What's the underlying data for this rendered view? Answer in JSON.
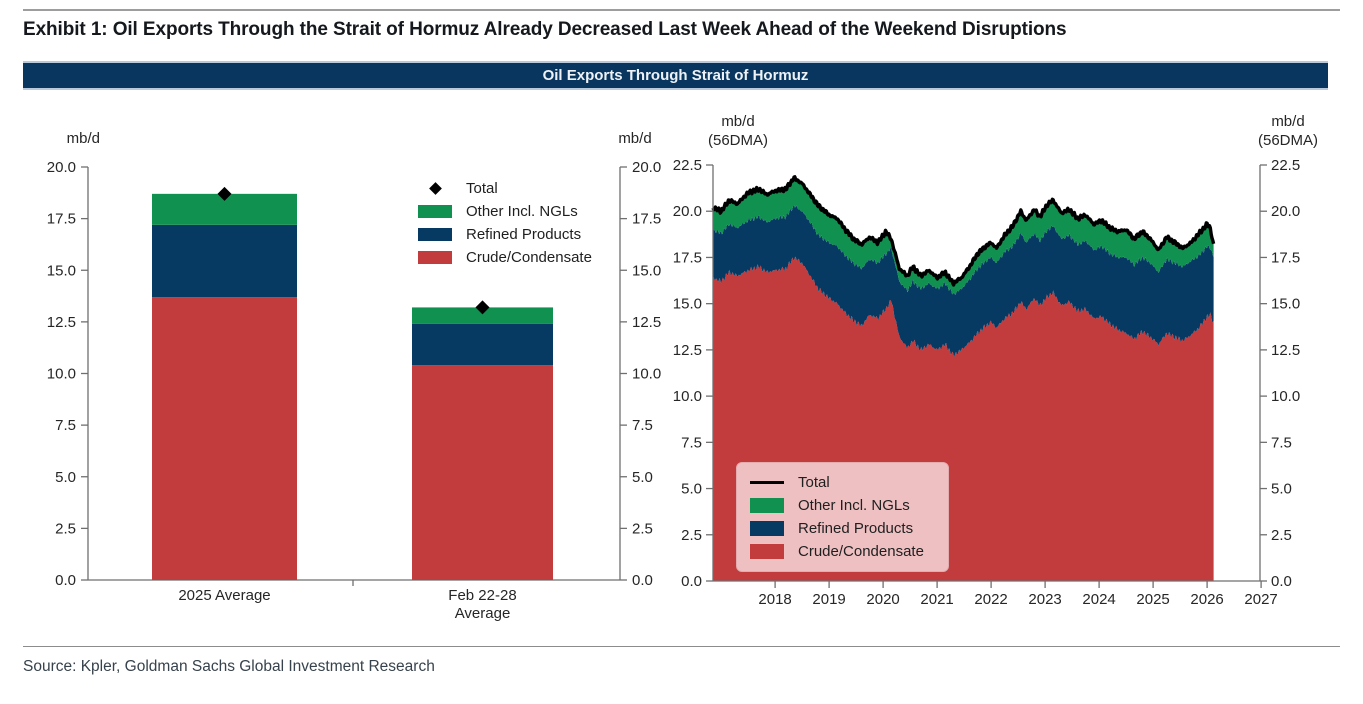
{
  "page": {
    "exhibit_title": "Exhibit 1: Oil Exports Through the Strait of Hormuz Already Decreased Last Week Ahead of the Weekend Disruptions",
    "banner_title": "Oil Exports Through Strait of Hormuz",
    "source": "Source: Kpler, Goldman Sachs Global Investment Research"
  },
  "colors": {
    "crude": "#c23b3d",
    "refined": "#063a63",
    "other": "#109150",
    "total": "#000000",
    "axis": "#6f6f6f",
    "tick_text": "#262626",
    "banner_bg": "#09365e",
    "legend_bg": "#eec0c2"
  },
  "chart_data": [
    {
      "type": "bar",
      "stacked": true,
      "ylabel_left": "mb/d",
      "ylabel_right": "mb/d",
      "ylim": [
        0,
        20
      ],
      "y_ticks": [
        "20.0",
        "17.5",
        "15.0",
        "12.5",
        "10.0",
        "7.5",
        "5.0",
        "2.5",
        "0.0"
      ],
      "categories": [
        "2025 Average",
        "Feb 22-28\nAverage"
      ],
      "series": [
        {
          "name": "Crude/Condensate",
          "color": "crude",
          "values": [
            13.7,
            10.4
          ]
        },
        {
          "name": "Refined Products",
          "color": "refined",
          "values": [
            3.5,
            2.0
          ]
        },
        {
          "name": "Other Incl. NGLs",
          "color": "other",
          "values": [
            1.5,
            0.8
          ]
        }
      ],
      "total_markers": [
        18.7,
        13.2
      ],
      "legend": [
        {
          "label": "Total",
          "marker": "diamond",
          "color": "total"
        },
        {
          "label": "Other Incl. NGLs",
          "color": "other"
        },
        {
          "label": "Refined Products",
          "color": "refined"
        },
        {
          "label": "Crude/Condensate",
          "color": "crude"
        }
      ],
      "legend_position": "upper right"
    },
    {
      "type": "area",
      "stacked": true,
      "ylabel_left": "mb/d\n(56DMA)",
      "ylabel_right": "mb/d\n(56DMA)",
      "ylim": [
        0,
        22.5
      ],
      "y_ticks": [
        "22.5",
        "20.0",
        "17.5",
        "15.0",
        "12.5",
        "10.0",
        "7.5",
        "5.0",
        "2.5",
        "0.0"
      ],
      "x_ticks": [
        "2018",
        "2019",
        "2020",
        "2021",
        "2022",
        "2023",
        "2024",
        "2025",
        "2026",
        "2027"
      ],
      "x_range": [
        2016.85,
        2026.12
      ],
      "grid": false,
      "legend_position": "lower left",
      "series_boundaries": {
        "x": [
          2016.85,
          2017.0,
          2017.15,
          2017.3,
          2017.5,
          2017.7,
          2017.85,
          2018.0,
          2018.2,
          2018.35,
          2018.5,
          2018.65,
          2018.8,
          2019.0,
          2019.15,
          2019.3,
          2019.45,
          2019.6,
          2019.75,
          2019.9,
          2020.05,
          2020.15,
          2020.3,
          2020.45,
          2020.55,
          2020.7,
          2020.85,
          2021.0,
          2021.15,
          2021.3,
          2021.45,
          2021.6,
          2021.75,
          2021.9,
          2022.0,
          2022.1,
          2022.25,
          2022.4,
          2022.55,
          2022.65,
          2022.8,
          2022.9,
          2023.05,
          2023.15,
          2023.3,
          2023.45,
          2023.6,
          2023.75,
          2023.9,
          2024.05,
          2024.2,
          2024.35,
          2024.5,
          2024.65,
          2024.8,
          2024.95,
          2025.1,
          2025.25,
          2025.4,
          2025.55,
          2025.7,
          2025.85,
          2026.0,
          2026.06,
          2026.1,
          2026.12
        ],
        "crude_top": [
          16.4,
          16.2,
          16.7,
          16.5,
          16.8,
          17.0,
          16.7,
          16.8,
          16.9,
          17.5,
          17.2,
          16.5,
          15.8,
          15.3,
          15.0,
          14.5,
          14.1,
          13.8,
          14.4,
          14.2,
          14.7,
          15.2,
          13.2,
          12.6,
          13.0,
          12.5,
          12.8,
          12.5,
          12.8,
          12.2,
          12.5,
          12.9,
          13.4,
          13.8,
          14.0,
          13.7,
          14.2,
          14.5,
          15.1,
          14.7,
          15.3,
          14.9,
          15.4,
          15.6,
          14.9,
          15.1,
          14.6,
          14.7,
          14.2,
          14.3,
          13.9,
          13.6,
          13.4,
          13.1,
          13.5,
          13.2,
          12.8,
          13.4,
          13.2,
          13.0,
          13.3,
          13.7,
          14.3,
          14.4,
          14.1,
          14.0
        ],
        "refined_top": [
          19.0,
          18.8,
          19.3,
          19.1,
          19.5,
          19.7,
          19.4,
          19.6,
          19.7,
          20.3,
          20.0,
          19.4,
          18.7,
          18.3,
          18.1,
          17.6,
          17.2,
          16.9,
          17.4,
          17.2,
          17.7,
          18.0,
          16.2,
          15.7,
          16.2,
          15.8,
          16.1,
          15.8,
          16.1,
          15.5,
          15.8,
          16.3,
          16.9,
          17.3,
          17.5,
          17.2,
          17.8,
          18.1,
          18.8,
          18.3,
          18.8,
          18.4,
          19.0,
          19.2,
          18.5,
          18.7,
          18.2,
          18.4,
          17.9,
          18.1,
          17.7,
          17.5,
          17.5,
          17.1,
          17.5,
          17.2,
          16.7,
          17.4,
          17.2,
          17.0,
          17.3,
          17.6,
          18.1,
          18.0,
          17.7,
          17.6
        ],
        "total": [
          20.2,
          20.0,
          20.6,
          20.4,
          21.0,
          21.2,
          20.9,
          21.1,
          21.2,
          21.8,
          21.5,
          20.9,
          20.3,
          19.8,
          19.6,
          19.0,
          18.5,
          18.2,
          18.6,
          18.3,
          18.9,
          18.5,
          16.9,
          16.5,
          17.0,
          16.5,
          16.8,
          16.4,
          16.7,
          16.1,
          16.4,
          17.0,
          17.7,
          18.1,
          18.3,
          18.0,
          18.7,
          19.2,
          20.0,
          19.5,
          20.1,
          19.7,
          20.4,
          20.6,
          19.9,
          20.1,
          19.6,
          19.8,
          19.3,
          19.5,
          19.1,
          18.9,
          19.0,
          18.5,
          18.9,
          18.5,
          17.9,
          18.6,
          18.3,
          18.0,
          18.3,
          18.8,
          19.3,
          19.1,
          18.4,
          18.2
        ]
      },
      "legend": [
        {
          "label": "Total",
          "marker": "line",
          "color": "total"
        },
        {
          "label": "Other Incl. NGLs",
          "color": "other"
        },
        {
          "label": "Refined Products",
          "color": "refined"
        },
        {
          "label": "Crude/Condensate",
          "color": "crude"
        }
      ]
    }
  ]
}
